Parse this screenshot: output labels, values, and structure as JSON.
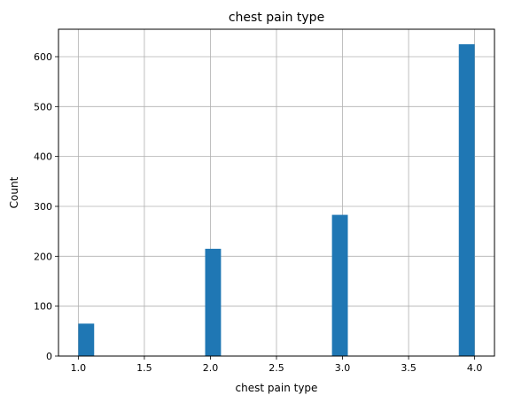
{
  "chart_data": {
    "type": "bar",
    "title": "chest pain type",
    "xlabel": "chest pain type",
    "ylabel": "Count",
    "grid": true,
    "xlim": [
      0.85,
      4.15
    ],
    "ylim": [
      0,
      655
    ],
    "xticks": [
      "1.0",
      "1.5",
      "2.0",
      "2.5",
      "3.0",
      "3.5",
      "4.0"
    ],
    "yticks": [
      "0",
      "100",
      "200",
      "300",
      "400",
      "500",
      "600"
    ],
    "bins": [
      {
        "x0": 1.0,
        "x1": 1.12,
        "count": 65
      },
      {
        "x0": 1.96,
        "x1": 2.08,
        "count": 215
      },
      {
        "x0": 2.92,
        "x1": 3.04,
        "count": 283
      },
      {
        "x0": 3.88,
        "x1": 4.0,
        "count": 625
      }
    ],
    "bar_color": "#1f77b4"
  }
}
